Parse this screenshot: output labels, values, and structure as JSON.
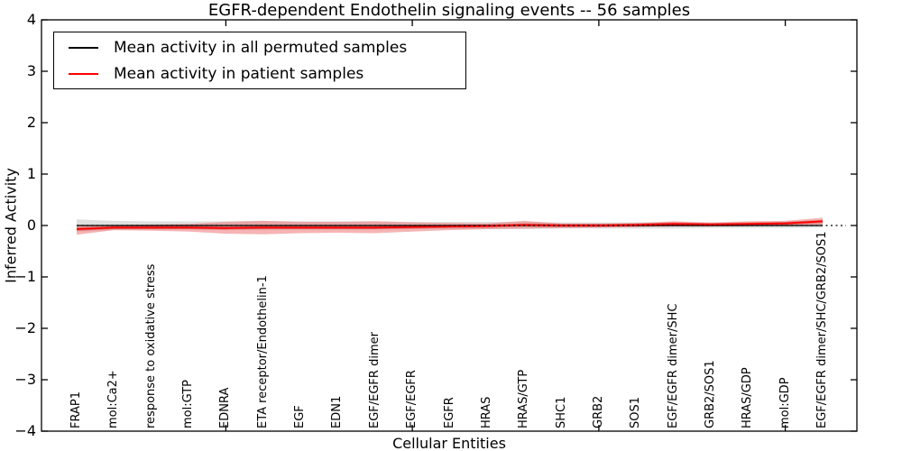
{
  "title": "EGFR-dependent Endothelin signaling events -- 56 samples",
  "legend": {
    "items": [
      {
        "label": "Mean activity in all permuted samples",
        "color": "#000000"
      },
      {
        "label": "Mean activity in patient samples",
        "color": "#ff0000"
      }
    ]
  },
  "chart_data": {
    "type": "line",
    "title": "EGFR-dependent Endothelin signaling events -- 56 samples",
    "xlabel": "Cellular Entities",
    "ylabel": "Inferred Activity",
    "ylim": [
      -4,
      4
    ],
    "yticks": [
      4,
      3,
      2,
      1,
      0,
      -1,
      -2,
      -3,
      -4
    ],
    "ytick_labels": [
      "4",
      "3",
      "2",
      "1",
      "0",
      "−1",
      "−2",
      "−3",
      "−4"
    ],
    "grid": false,
    "legend_position": "upper left",
    "zero_line": {
      "y": 0,
      "style": "dotted",
      "color": "#000000"
    },
    "categories": [
      "FRAP1",
      "mol:Ca2+",
      "response to oxidative stress",
      "mol:GTP",
      "EDNRA",
      "ETA receptor/Endothelin-1",
      "EGF",
      "EDN1",
      "EGF/EGFR dimer",
      "EGF/EGFR",
      "EGFR",
      "HRAS",
      "HRAS/GTP",
      "SHC1",
      "GRB2",
      "SOS1",
      "EGF/EGFR dimer/SHC",
      "GRB2/SOS1",
      "HRAS/GDP",
      "mol:GDP",
      "EGF/EGFR dimer/SHC/GRB2/SOS1"
    ],
    "xticks_at_category_numbers": [
      5,
      10,
      15,
      20
    ],
    "series": [
      {
        "name": "Mean activity in all permuted samples",
        "color": "#000000",
        "style": "solid",
        "values": [
          0,
          0,
          0,
          0,
          0,
          0,
          0,
          0,
          0,
          0,
          0,
          0,
          0,
          0,
          0,
          0,
          0,
          0,
          0,
          0,
          0
        ]
      },
      {
        "name": "Mean activity in patient samples",
        "color": "#ff0000",
        "style": "solid",
        "values": [
          -0.07,
          -0.04,
          -0.04,
          -0.04,
          -0.05,
          -0.04,
          -0.04,
          -0.04,
          -0.04,
          -0.03,
          -0.02,
          -0.01,
          0.01,
          0.0,
          0.0,
          0.01,
          0.03,
          0.02,
          0.03,
          0.04,
          0.08
        ]
      }
    ],
    "bands": [
      {
        "name": "permuted-samples-spread",
        "color": "#bfbfbf",
        "opacity": 0.5,
        "upper": [
          0.12,
          0.09,
          0.08,
          0.08,
          0.08,
          0.09,
          0.08,
          0.08,
          0.08,
          0.07,
          0.07,
          0.07,
          0.07,
          0.06,
          0.06,
          0.06,
          0.06,
          0.05,
          0.05,
          0.05,
          0.04
        ],
        "lower": [
          -0.12,
          -0.09,
          -0.08,
          -0.08,
          -0.08,
          -0.09,
          -0.08,
          -0.08,
          -0.08,
          -0.07,
          -0.07,
          -0.07,
          -0.07,
          -0.06,
          -0.06,
          -0.06,
          -0.06,
          -0.05,
          -0.05,
          -0.05,
          -0.04
        ]
      },
      {
        "name": "patient-samples-spread",
        "color": "#ee7777",
        "opacity": 0.55,
        "upper": [
          0.0,
          0.01,
          0.02,
          0.03,
          0.07,
          0.09,
          0.07,
          0.07,
          0.08,
          0.06,
          0.05,
          0.04,
          0.09,
          0.04,
          0.04,
          0.05,
          0.08,
          0.06,
          0.08,
          0.09,
          0.15
        ],
        "lower": [
          -0.18,
          -0.09,
          -0.1,
          -0.12,
          -0.16,
          -0.17,
          -0.15,
          -0.14,
          -0.15,
          -0.12,
          -0.09,
          -0.07,
          -0.06,
          -0.05,
          -0.04,
          -0.03,
          -0.02,
          -0.02,
          -0.01,
          0.0,
          0.02
        ]
      },
      {
        "name": "patient-samples-spread-core",
        "color": "#cc2222",
        "opacity": 0.45,
        "upper": [
          -0.04,
          -0.01,
          -0.01,
          -0.01,
          -0.02,
          -0.01,
          -0.01,
          -0.01,
          -0.01,
          0.0,
          0.01,
          0.02,
          0.04,
          0.03,
          0.03,
          0.04,
          0.06,
          0.05,
          0.06,
          0.07,
          0.11
        ],
        "lower": [
          -0.1,
          -0.07,
          -0.07,
          -0.07,
          -0.08,
          -0.07,
          -0.07,
          -0.07,
          -0.07,
          -0.06,
          -0.05,
          -0.04,
          -0.02,
          -0.03,
          -0.03,
          -0.02,
          0.0,
          -0.01,
          0.0,
          0.01,
          0.05
        ]
      }
    ]
  }
}
